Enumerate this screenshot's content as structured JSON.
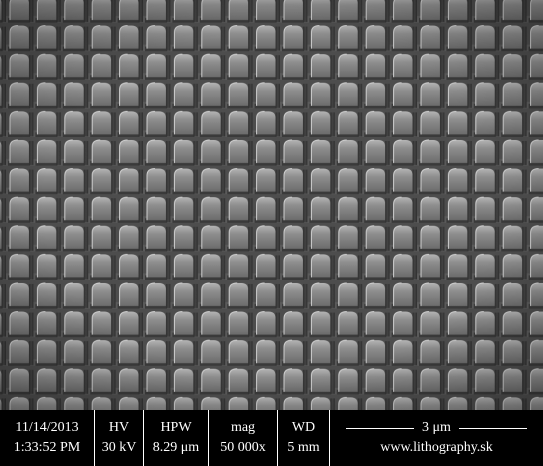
{
  "info_bar": {
    "cells": [
      {
        "top": "11/14/2013",
        "bottom": "1:33:52 PM"
      },
      {
        "top": "HV",
        "bottom": "30 kV"
      },
      {
        "top": "HPW",
        "bottom": "8.29 μm"
      },
      {
        "top": "mag",
        "bottom": "50 000x"
      },
      {
        "top": "WD",
        "bottom": "5 mm"
      }
    ],
    "scale_bar": {
      "label": "3 μm",
      "site": "www.lithography.sk"
    }
  }
}
